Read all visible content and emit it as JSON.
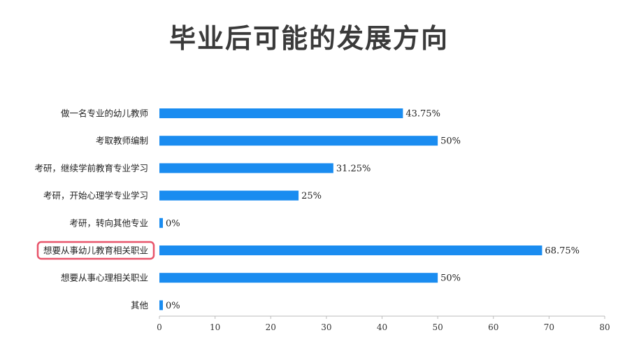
{
  "chart_data": {
    "type": "bar",
    "orientation": "horizontal",
    "title": "毕业后可能的发展方向",
    "categories": [
      "做一名专业的幼儿教师",
      "考取教师编制",
      "考研，继续学前教育专业学习",
      "考研，开始心理学专业学习",
      "考研，转向其他专业",
      "想要从事幼儿教育相关职业",
      "想要从事心理相关职业",
      "其他"
    ],
    "values": [
      43.75,
      50,
      31.25,
      25,
      0,
      68.75,
      50,
      0
    ],
    "value_labels": [
      "43.75%",
      "50%",
      "31.25%",
      "25%",
      "0%",
      "68.75%",
      "50%",
      "0%"
    ],
    "xlim": [
      0,
      80
    ],
    "xticks": [
      0,
      10,
      20,
      30,
      40,
      50,
      60,
      70,
      80
    ],
    "grid": false,
    "highlighted_category": "想要从事幼儿教育相关职业",
    "colors": {
      "bar": "#1a8cf0",
      "highlight_border": "#e8546a",
      "axis": "#bbbbbb",
      "title": "#3a3a3a"
    }
  }
}
